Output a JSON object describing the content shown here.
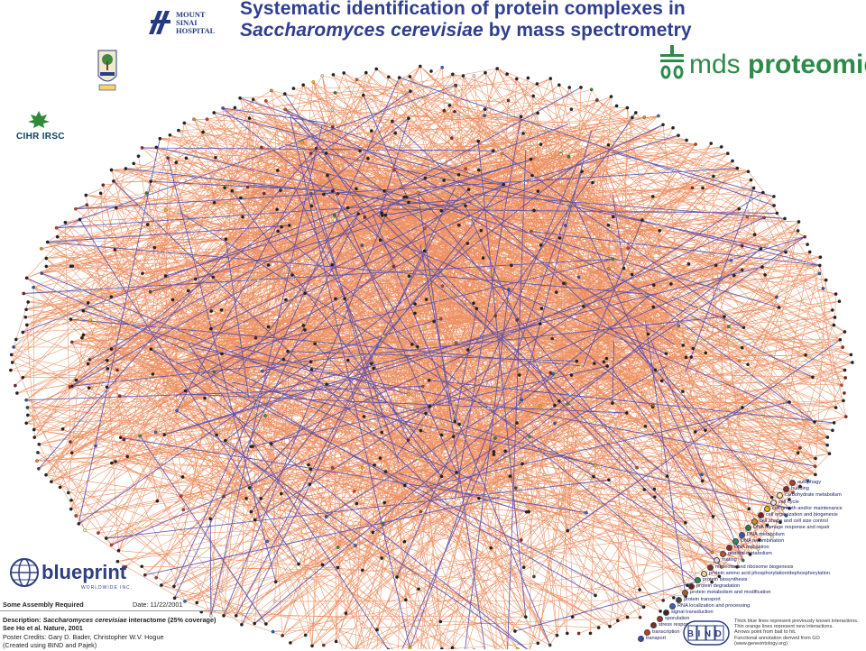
{
  "header": {
    "title_line1": "Systematic identification of protein complexes in",
    "title_line2_italic": "Saccharomyces cerevisiae",
    "title_line2_rest": " by mass spectrometry"
  },
  "logos": {
    "mount_sinai_line1": "MOUNT",
    "mount_sinai_line2": "SINAI",
    "mount_sinai_line3": "HOSPITAL",
    "cihr": "CIHR IRSC",
    "mds_light": "mds ",
    "mds_bold": "proteomics",
    "blueprint_word": "blueprint",
    "blueprint_sub": "WORLDWIDE INC."
  },
  "infobox": {
    "assembly": "Some Assembly Required",
    "date": "Date: 11/22/2001",
    "desc_label": "Description: ",
    "desc_italic": "Saccharomyces cerevisiae",
    "desc_rest": " interactome (25% coverage) See Ho et al. Nature, 2001",
    "credits_line1": "Poster Credits: Gary D. Bader, Christopher W.V. Hogue",
    "credits_line2": "(Created using BIND and Pajek)"
  },
  "legend": [
    {
      "label": "autophagy",
      "color": "#c0392b"
    },
    {
      "label": "budding",
      "color": "#7a2c2c"
    },
    {
      "label": "carbohydrate metabolism",
      "color": "#f5f0b0"
    },
    {
      "label": "cell cycle",
      "color": "#e3e3e3"
    },
    {
      "label": "cell growth and/or maintenance",
      "color": "#e6b800"
    },
    {
      "label": "cell organization and biogenesis",
      "color": "#7a1f1f"
    },
    {
      "label": "cell shape and cell size control",
      "color": "#d18a2c"
    },
    {
      "label": "DNA damage response and repair",
      "color": "#2d7f3a"
    },
    {
      "label": "DNA metabolism",
      "color": "#1f5fbf"
    },
    {
      "label": "DNA recombination",
      "color": "#2e8b57"
    },
    {
      "label": "DNA replication",
      "color": "#8b2c2c"
    },
    {
      "label": "general metabolism",
      "color": "#c4502a"
    },
    {
      "label": "mating",
      "color": "#d9d9d9"
    },
    {
      "label": "nucleolar and ribosome biogenesis",
      "color": "#8a2a2a"
    },
    {
      "label": "protein amino acid phosphorylation/dephosphorylation",
      "color": "#e8d890"
    },
    {
      "label": "protein biosynthesis",
      "color": "#2e8b57"
    },
    {
      "label": "protein degradation",
      "color": "#6b1f1f"
    },
    {
      "label": "protein metabolism and modification",
      "color": "#a06030"
    },
    {
      "label": "protein transport",
      "color": "#444444"
    },
    {
      "label": "RNA localization and processing",
      "color": "#3a5fbf"
    },
    {
      "label": "signal transduction",
      "color": "#2b2b2b"
    },
    {
      "label": "sporulation",
      "color": "#b03030"
    },
    {
      "label": "stress response",
      "color": "#7a2c2c"
    },
    {
      "label": "transcription",
      "color": "#c04020"
    },
    {
      "label": "transport",
      "color": "#3050b0"
    }
  ],
  "bind": {
    "logo_text": "BIND",
    "note": [
      "Thick blue lines represent previously known interactions.",
      "Thin orange lines represent new interactions.",
      "Arrows point from bait to hit.",
      "Functional annotation derived from GO",
      "(www.geneontology.org)"
    ]
  },
  "colors": {
    "edge_new": "#e8743b",
    "edge_known": "#4a45b0",
    "title": "#2f3f8f",
    "mds_green": "#2d8b4a"
  }
}
